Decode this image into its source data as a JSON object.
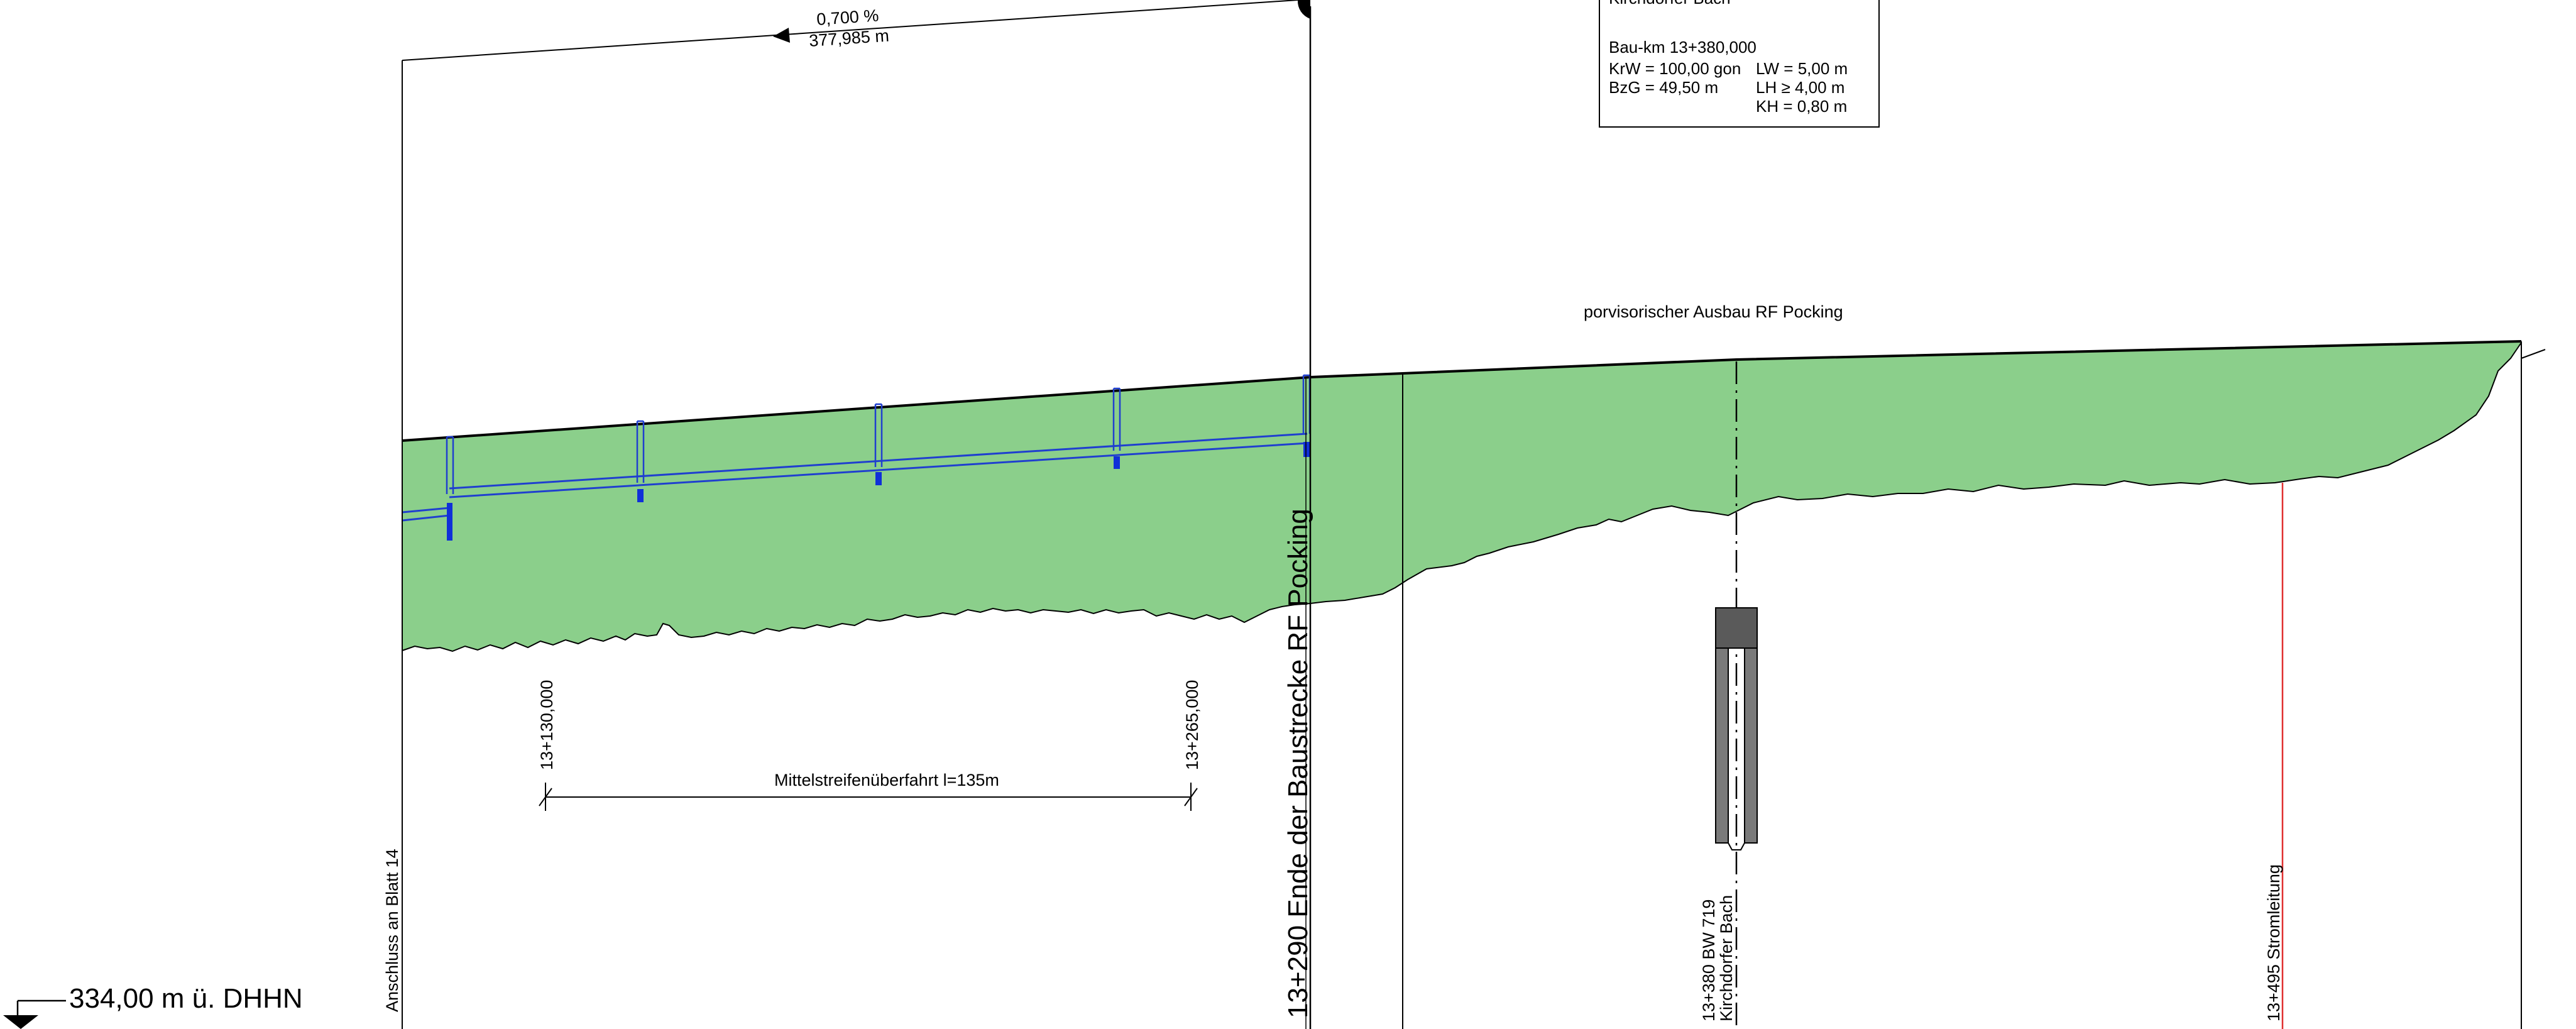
{
  "gradient": {
    "percent": "0,700 %",
    "length": "377,985 m"
  },
  "structure_box": {
    "title_partial": "Kirchdorfer Bach",
    "bau_km": "Bau-km 13+380,000",
    "krw": "KrW = 100,00 gon",
    "bzg": "BzG =   49,50 m",
    "lw": "LW =   5,00 m",
    "lh": "LH  ≥   4,00 m",
    "kh": "KH  =  0,80 m"
  },
  "section_label": "porvisorischer Ausbau RF Pocking",
  "crossing": {
    "start_km": "13+130,000",
    "end_km": "13+265,000",
    "label": "Mittelstreifenüberfahrt l=135m"
  },
  "vertical_labels": {
    "sheet_join": "Anschluss an Blatt 14",
    "end_section": "13+290 Ende der Baustrecke RF Pocking",
    "bridge_line1": "13+380 BW 719",
    "bridge_line2": "Kirchdorfer Bach",
    "power_line": "13+495 Stromleitung"
  },
  "datum": {
    "label": "334,00 m ü. DHHN",
    "icon": "datum-triangle-icon"
  },
  "colors": {
    "terrain_fill": "#8bcf8b",
    "drainage": "#1f3fcf",
    "drainage_fill": "#1030d8",
    "power_line": "#e03030",
    "structure_gray": "#7a7a7a",
    "structure_dark": "#5a5a5a"
  }
}
